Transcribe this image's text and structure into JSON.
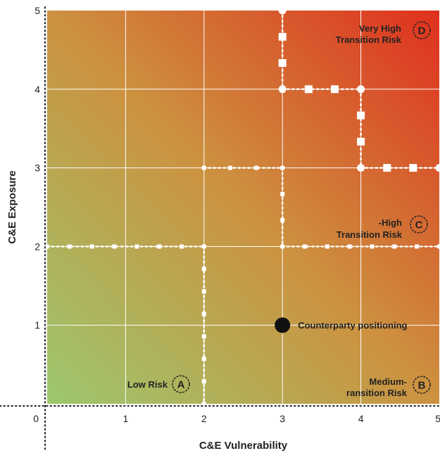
{
  "chart_data": {
    "type": "scatter",
    "xlabel": "C&E Vulnerability",
    "ylabel": "C&E Exposure",
    "xlim": [
      0,
      5
    ],
    "ylim": [
      0,
      5
    ],
    "x_ticks": [
      "0",
      "1",
      "2",
      "3",
      "4",
      "5"
    ],
    "y_ticks": [
      "1",
      "2",
      "3",
      "4",
      "5"
    ],
    "grid": true,
    "background": "gradient from green (low risk, bottom-left) to red (very high risk, top-right)",
    "colors": {
      "low": "#9cc86e",
      "mid": "#cc9240",
      "high": "#e0301e",
      "grid": "#ffffff",
      "marker": "#111111"
    },
    "zones": [
      {
        "badge": "A",
        "lines": [
          "Low  Risk"
        ],
        "x": 2,
        "y": 0
      },
      {
        "badge": "B",
        "lines": [
          "Medium-",
          "ransition Risk"
        ],
        "x": 5,
        "y": 0
      },
      {
        "badge": "C",
        "lines": [
          "-High",
          "Transition Risk"
        ],
        "x": 5,
        "y": 2
      },
      {
        "badge": "D",
        "lines": [
          "Very High",
          "Transition Risk"
        ],
        "x": 5,
        "y": 5
      }
    ],
    "boundaries": [
      {
        "name": "A",
        "points": [
          [
            0,
            2
          ],
          [
            2,
            2
          ],
          [
            2,
            0
          ]
        ]
      },
      {
        "name": "B",
        "points": [
          [
            2,
            3
          ],
          [
            3,
            3
          ],
          [
            3,
            2
          ],
          [
            5,
            2
          ]
        ]
      },
      {
        "name": "C",
        "points": [
          [
            3,
            5
          ],
          [
            3,
            4
          ],
          [
            4,
            4
          ],
          [
            4,
            3
          ],
          [
            5,
            3
          ]
        ]
      }
    ],
    "points": [
      {
        "label": "Counterparty positioning",
        "x": 3,
        "y": 1
      }
    ]
  }
}
